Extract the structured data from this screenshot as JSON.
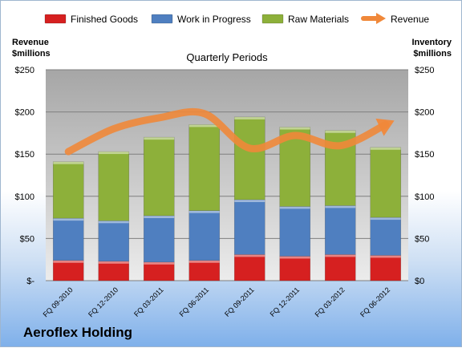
{
  "company": "Aeroflex Holding",
  "chart_data": {
    "type": "bar",
    "stacked": true,
    "title": "Quarterly Periods",
    "ylabel_left": [
      "Revenue",
      "$millions"
    ],
    "ylabel_right": [
      "Inventory",
      "$millions"
    ],
    "ylim": [
      0,
      250
    ],
    "yticks_left": [
      "$-",
      "$50",
      "$100",
      "$150",
      "$200",
      "$250"
    ],
    "yticks_right": [
      "$0",
      "$50",
      "$100",
      "$150",
      "$200",
      "$250"
    ],
    "grid": true,
    "legend_position": "top",
    "categories": [
      "FQ 09-2010",
      "FQ 12-2010",
      "FQ 03-2011",
      "FQ 06-2011",
      "FQ 09-2011",
      "FQ 12-2011",
      "FQ 03-2012",
      "FQ 06-2012"
    ],
    "series": [
      {
        "name": "Finished Goods",
        "color": "#d62020",
        "values": [
          24,
          23,
          22,
          24,
          31,
          29,
          31,
          30
        ]
      },
      {
        "name": "Work in Progress",
        "color": "#4f7fc0",
        "values": [
          50,
          48,
          55,
          59,
          65,
          59,
          58,
          45
        ]
      },
      {
        "name": "Raw Materials",
        "color": "#8db03a",
        "values": [
          67,
          82,
          93,
          102,
          98,
          94,
          89,
          83
        ]
      }
    ],
    "line": {
      "name": "Revenue",
      "color": "#f0883a",
      "values": [
        153,
        180,
        193,
        198,
        157,
        172,
        160,
        185
      ]
    }
  }
}
